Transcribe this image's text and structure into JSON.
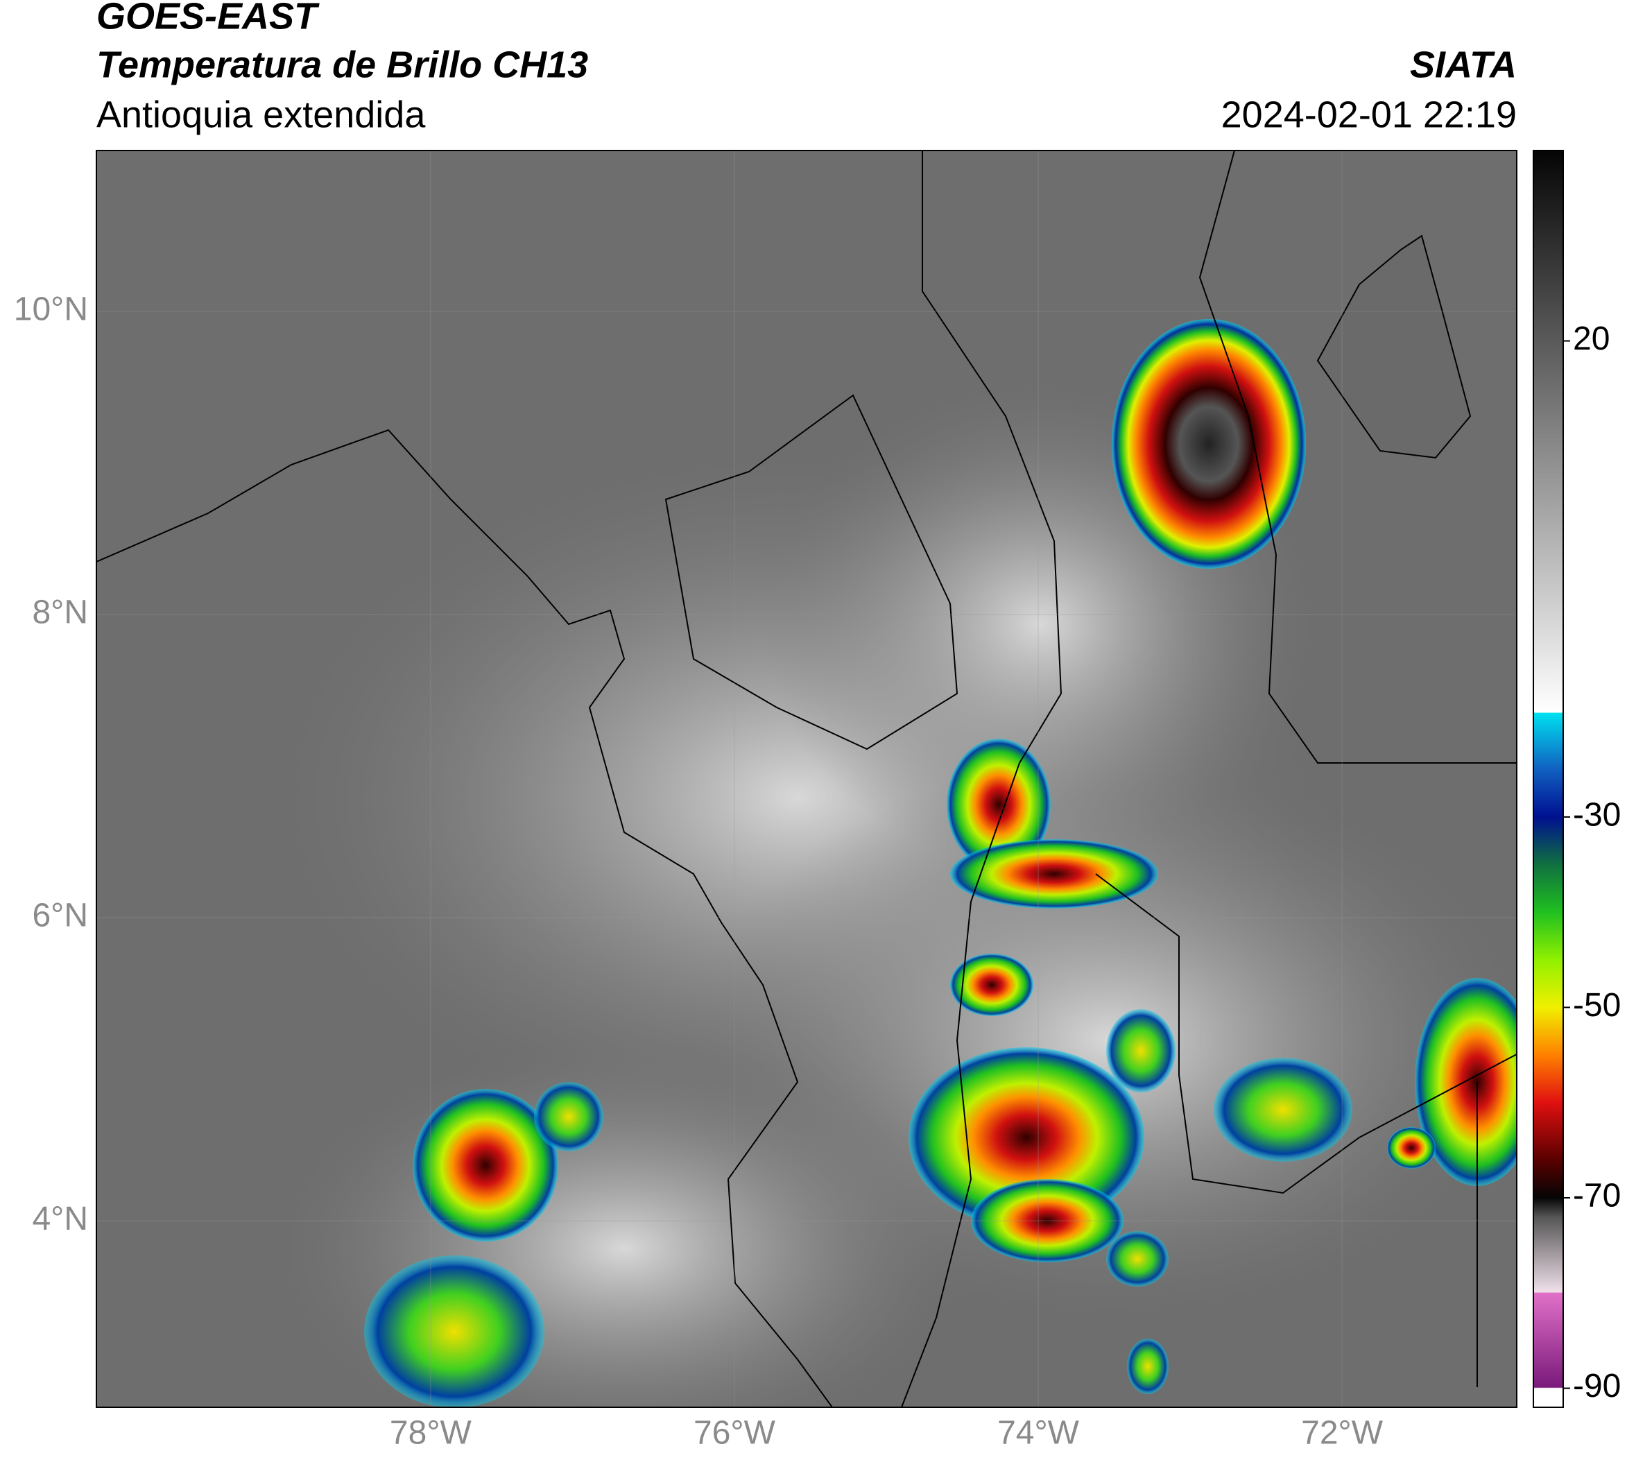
{
  "chart_data": {
    "type": "map",
    "title": "GOES-EAST",
    "subtitle": "Temperatura de Brillo CH13",
    "region": "Antioquia extendida",
    "source": "SIATA",
    "datetime": "2024-02-01 22:19",
    "xlim": [
      -80.2,
      -70.85
    ],
    "ylim": [
      2.77,
      11.06
    ],
    "xticks": [
      {
        "value": -78,
        "label": "78°W"
      },
      {
        "value": -76,
        "label": "76°W"
      },
      {
        "value": -74,
        "label": "74°W"
      },
      {
        "value": -72,
        "label": "72°W"
      }
    ],
    "yticks": [
      {
        "value": 4,
        "label": "4°N"
      },
      {
        "value": 6,
        "label": "6°N"
      },
      {
        "value": 8,
        "label": "8°N"
      },
      {
        "value": 10,
        "label": "10°N"
      }
    ],
    "grid": true,
    "colorbar": {
      "lim": [
        -92,
        40
      ],
      "ticks": [
        -90,
        -70,
        -50,
        -30,
        20
      ],
      "colormap": [
        {
          "value": -92,
          "color": "#ffffff"
        },
        {
          "value": -90,
          "color": "#ffffff"
        },
        {
          "value": -89.9,
          "color": "#7a1a7a"
        },
        {
          "value": -80,
          "color": "#e070c8"
        },
        {
          "value": -79.9,
          "color": "#f0e0ea"
        },
        {
          "value": -72,
          "color": "#555555"
        },
        {
          "value": -70,
          "color": "#050505"
        },
        {
          "value": -66,
          "color": "#5a0000"
        },
        {
          "value": -60,
          "color": "#e01010"
        },
        {
          "value": -55,
          "color": "#ff8000"
        },
        {
          "value": -50,
          "color": "#f0f000"
        },
        {
          "value": -45,
          "color": "#90f000"
        },
        {
          "value": -40,
          "color": "#20c020"
        },
        {
          "value": -35,
          "color": "#107040"
        },
        {
          "value": -30,
          "color": "#001090"
        },
        {
          "value": -25,
          "color": "#1060c0"
        },
        {
          "value": -19.1,
          "color": "#00e0f0"
        },
        {
          "value": -19,
          "color": "#ffffff"
        },
        {
          "value": 40,
          "color": "#050505"
        }
      ]
    }
  }
}
